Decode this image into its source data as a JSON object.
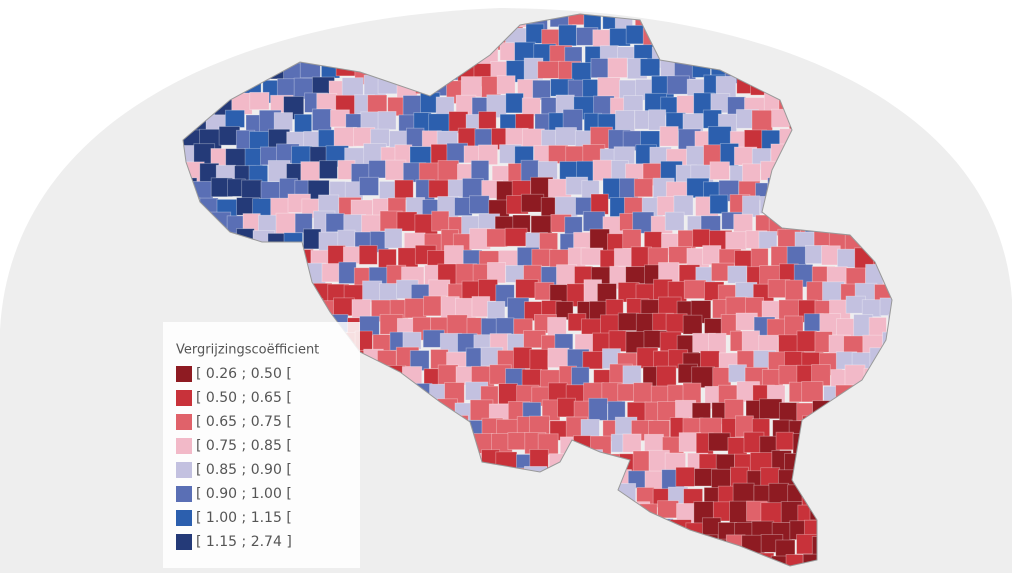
{
  "legend": {
    "title": "Vergrijzingscoëfficient",
    "entries": [
      {
        "label": "[ 0.26 ; 0.50 [",
        "color": "#8e1b22"
      },
      {
        "label": "[ 0.50 ; 0.65 [",
        "color": "#c8323a"
      },
      {
        "label": "[ 0.65 ; 0.75 [",
        "color": "#e0626a"
      },
      {
        "label": "[ 0.75 ; 0.85 [",
        "color": "#f2b9c8"
      },
      {
        "label": "[ 0.85 ; 0.90 [",
        "color": "#c3c1e0"
      },
      {
        "label": "[ 0.90 ; 1.00 [",
        "color": "#5a6fb5"
      },
      {
        "label": "[ 1.00 ; 1.15 [",
        "color": "#2c5fae"
      },
      {
        "label": "[ 1.15 ; 2.74 ]",
        "color": "#243a78"
      }
    ]
  }
}
